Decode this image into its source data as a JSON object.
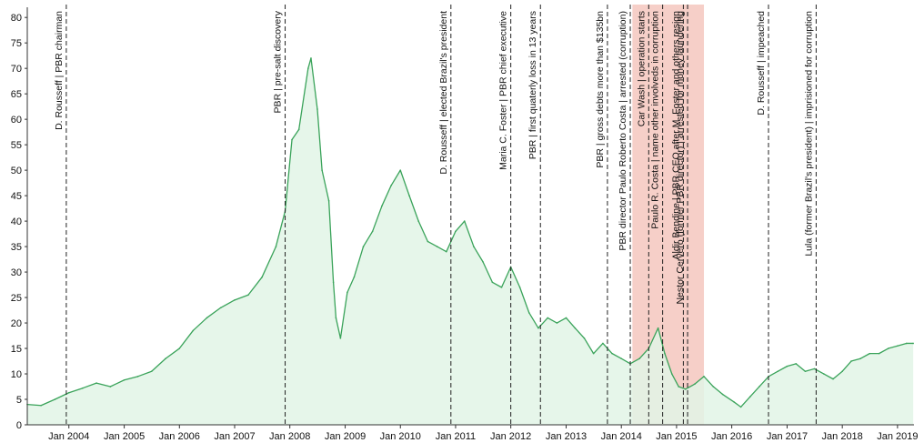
{
  "chart_data": {
    "type": "area",
    "title": "",
    "xlabel": "",
    "ylabel": "",
    "x_range": [
      "2003-04-01",
      "2019-04-20"
    ],
    "ylim": [
      0,
      82
    ],
    "y_ticks": [
      0,
      5,
      10,
      15,
      20,
      25,
      30,
      35,
      40,
      45,
      50,
      55,
      60,
      65,
      70,
      75,
      80
    ],
    "x_ticks": [
      {
        "date": "2004-01-01",
        "label": "Jan 2004"
      },
      {
        "date": "2005-01-01",
        "label": "Jan 2005"
      },
      {
        "date": "2006-01-01",
        "label": "Jan 2006"
      },
      {
        "date": "2007-01-01",
        "label": "Jan 2007"
      },
      {
        "date": "2008-01-01",
        "label": "Jan 2008"
      },
      {
        "date": "2009-01-01",
        "label": "Jan 2009"
      },
      {
        "date": "2010-01-01",
        "label": "Jan 2010"
      },
      {
        "date": "2011-01-01",
        "label": "Jan 2011"
      },
      {
        "date": "2012-01-01",
        "label": "Jan 2012"
      },
      {
        "date": "2013-01-01",
        "label": "Jan 2013"
      },
      {
        "date": "2014-01-01",
        "label": "Jan 2014"
      },
      {
        "date": "2015-01-01",
        "label": "Jan 2015"
      },
      {
        "date": "2016-01-01",
        "label": "Jan 2016"
      },
      {
        "date": "2017-01-01",
        "label": "Jan 2017"
      },
      {
        "date": "2018-01-01",
        "label": "Jan 2018"
      },
      {
        "date": "2019-01-01",
        "label": "Jan 2019"
      }
    ],
    "grid": false,
    "colors": {
      "line": "#3aa35a",
      "fill": "#e2f4e6",
      "highlight": "#f6cfc8",
      "event_line": "#222222"
    },
    "highlight_range": [
      "2014-03-15",
      "2015-07-01"
    ],
    "series": [
      {
        "x": [
          "2003-04-01",
          "2003-07-01",
          "2003-10-01",
          "2004-01-01",
          "2004-04-01",
          "2004-07-01",
          "2004-10-01",
          "2005-01-01",
          "2005-04-01",
          "2005-07-01",
          "2005-10-01",
          "2006-01-01",
          "2006-04-01",
          "2006-07-01",
          "2006-10-01",
          "2007-01-01",
          "2007-04-01",
          "2007-07-01",
          "2007-10-01",
          "2007-12-01",
          "2008-01-15",
          "2008-03-01",
          "2008-05-01",
          "2008-05-20",
          "2008-07-01",
          "2008-08-01",
          "2008-09-15",
          "2008-10-15",
          "2008-11-01",
          "2008-12-01",
          "2009-01-15",
          "2009-03-01",
          "2009-05-01",
          "2009-07-01",
          "2009-09-01",
          "2009-11-01",
          "2010-01-01",
          "2010-03-01",
          "2010-05-01",
          "2010-07-01",
          "2010-09-01",
          "2010-11-01",
          "2011-01-01",
          "2011-03-01",
          "2011-05-01",
          "2011-07-01",
          "2011-09-01",
          "2011-11-01",
          "2012-01-01",
          "2012-03-01",
          "2012-05-01",
          "2012-07-01",
          "2012-09-01",
          "2012-11-01",
          "2013-01-01",
          "2013-03-01",
          "2013-05-01",
          "2013-07-01",
          "2013-09-01",
          "2013-11-01",
          "2014-01-01",
          "2014-03-01",
          "2014-05-01",
          "2014-07-01",
          "2014-09-01",
          "2014-10-15",
          "2014-12-01",
          "2015-01-15",
          "2015-03-01",
          "2015-05-01",
          "2015-07-01",
          "2015-09-01",
          "2015-11-01",
          "2016-01-15",
          "2016-03-01",
          "2016-05-01",
          "2016-07-01",
          "2016-09-01",
          "2016-11-01",
          "2017-01-01",
          "2017-03-01",
          "2017-05-01",
          "2017-07-01",
          "2017-09-01",
          "2017-11-01",
          "2018-01-01",
          "2018-03-01",
          "2018-05-01",
          "2018-07-01",
          "2018-09-01",
          "2018-11-01",
          "2019-01-01",
          "2019-03-01",
          "2019-04-15"
        ],
        "y": [
          4.0,
          3.8,
          5.0,
          6.3,
          7.2,
          8.2,
          7.5,
          8.8,
          9.5,
          10.5,
          13.0,
          15.0,
          18.5,
          21.0,
          23.0,
          24.5,
          25.5,
          29.0,
          35.0,
          42.0,
          56.0,
          58.0,
          70.0,
          72.0,
          62.0,
          50.0,
          44.0,
          28.0,
          21.0,
          17.0,
          26.0,
          29.0,
          35.0,
          38.0,
          43.0,
          47.0,
          50.0,
          45.0,
          40.0,
          36.0,
          35.0,
          34.0,
          38.0,
          40.0,
          35.0,
          32.0,
          28.0,
          27.0,
          31.0,
          27.0,
          22.0,
          19.0,
          21.0,
          20.0,
          21.0,
          19.0,
          17.0,
          14.0,
          16.0,
          14.0,
          13.0,
          12.0,
          13.0,
          15.0,
          19.0,
          14.0,
          10.0,
          7.5,
          7.0,
          8.0,
          9.5,
          7.5,
          6.0,
          4.5,
          3.5,
          5.5,
          7.5,
          9.5,
          10.5,
          11.5,
          12.0,
          10.5,
          11.0,
          10.0,
          9.0,
          10.5,
          12.5,
          13.0,
          14.0,
          14.0,
          15.0,
          15.5,
          16.0,
          16.0
        ]
      }
    ],
    "events": [
      {
        "date": "2003-12-15",
        "label": "D. Rousseff  |  PBR chairman"
      },
      {
        "date": "2007-12-01",
        "label": "PBR  |  pre-salt discovery"
      },
      {
        "date": "2010-12-01",
        "label": "D. Rousseff  |  elected Brazil's president"
      },
      {
        "date": "2012-01-01",
        "label": "Maria C. Foster  |  PBR chief executive"
      },
      {
        "date": "2012-07-15",
        "label": "PBR  |  first quaterly loss in 13 years"
      },
      {
        "date": "2013-10-01",
        "label": "PBR  |  gross debts more than $135bn"
      },
      {
        "date": "2014-03-01",
        "label": "PBR director Paulo Roberto Costa  |  arrested (corruption)"
      },
      {
        "date": "2014-07-01",
        "label": "Car Wash  |  operation starts"
      },
      {
        "date": "2014-10-01",
        "label": "Paulo R. Costa  |  name other involveds in corruption"
      },
      {
        "date": "2015-02-15",
        "label": "Aldir Bendine  |  PBR CEO after M. Foster and others resign"
      },
      {
        "date": "2015-03-15",
        "label": "Nestor Cervero (former PBR director)  |  arrested for money laundering"
      },
      {
        "date": "2016-08-31",
        "label": "D. Rousseff  |  impeached"
      },
      {
        "date": "2017-07-12",
        "label": "Lula (former Brazil's president)  |  imprisioned for corruption"
      }
    ]
  }
}
